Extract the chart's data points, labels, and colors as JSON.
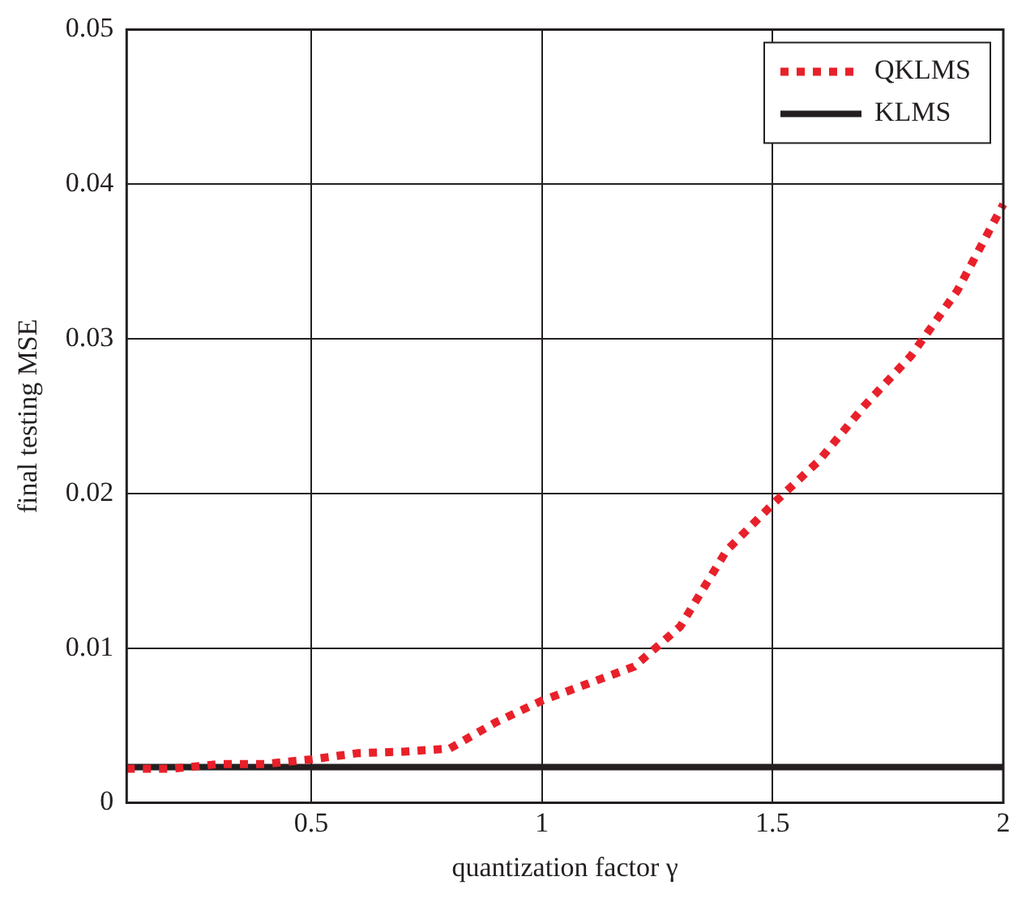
{
  "chart_data": {
    "type": "line",
    "xlabel": "quantization factor γ",
    "ylabel": "final testing MSE",
    "x": [
      0.1,
      0.2,
      0.3,
      0.4,
      0.5,
      0.6,
      0.7,
      0.8,
      0.9,
      1.0,
      1.1,
      1.2,
      1.3,
      1.4,
      1.5,
      1.6,
      1.7,
      1.8,
      1.9,
      2.0
    ],
    "series": [
      {
        "name": "QKLMS",
        "color": "#e8202a",
        "line_style": "dotted",
        "values": [
          0.0022,
          0.0022,
          0.0025,
          0.0025,
          0.0028,
          0.0032,
          0.0033,
          0.0035,
          0.0052,
          0.0066,
          0.0077,
          0.0088,
          0.0114,
          0.0163,
          0.0193,
          0.0221,
          0.0257,
          0.0289,
          0.0331,
          0.0387
        ]
      },
      {
        "name": "KLMS",
        "color": "#231f20",
        "line_style": "solid",
        "x": [
          0.1,
          2.0
        ],
        "values": [
          0.0023,
          0.0023
        ]
      }
    ],
    "xlim": [
      0.1,
      2
    ],
    "xticks": [
      0.5,
      1,
      1.5,
      2
    ],
    "ylim": [
      0,
      0.05
    ],
    "yticks": [
      0,
      0.01,
      0.02,
      0.03,
      0.04,
      0.05
    ],
    "grid": true,
    "legend": "top right",
    "marker": "none"
  }
}
